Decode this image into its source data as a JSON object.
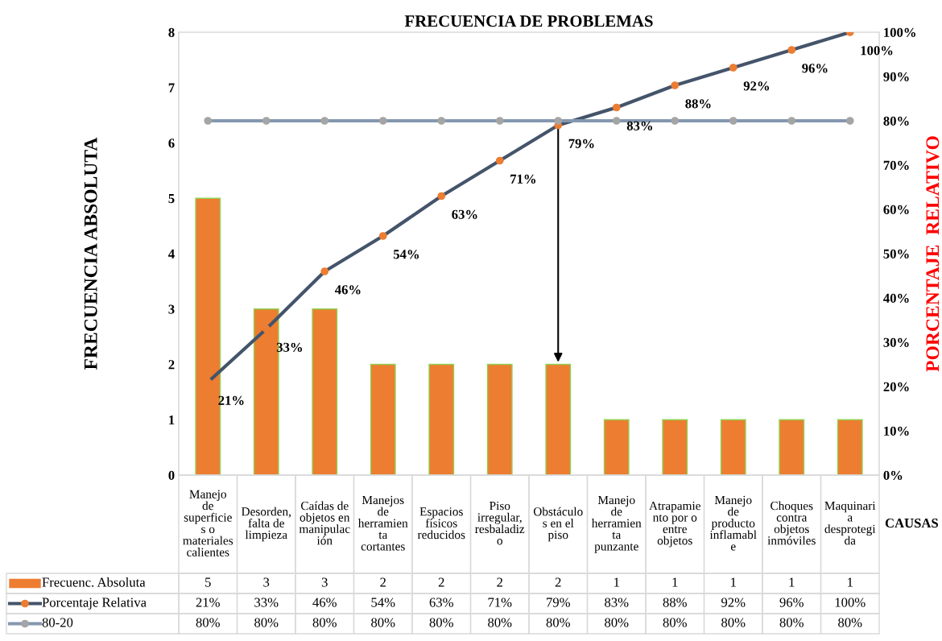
{
  "chart_data": {
    "type": "bar",
    "title": "FRECUENCIA DE PROBLEMAS",
    "xlabel": "CAUSAS",
    "ylabel": "FRECUENCIA ABSOLUTA",
    "y2label": "PORCENTAJE  RELATIVO",
    "categories": [
      "Manejo de superficies o materiales calientes",
      "Desorden, falta de limpieza",
      "Caídas de objetos en manipulación",
      "Manejos de herramienta cortantes",
      "Espacios físicos reducidos",
      "Piso irregular, resbaladizo",
      "Obstáculos en el piso",
      "Manejo de herramienta punzante",
      "Atrapamiento por o entre objetos",
      "Manejo de producto inflamable",
      "Choques contra objetos inmóviles",
      "Maquinaria desprotegida"
    ],
    "series": [
      {
        "name": "Frecuenc. Absoluta",
        "color": "#ed7d31",
        "values": [
          5,
          3,
          3,
          2,
          2,
          2,
          2,
          1,
          1,
          1,
          1,
          1
        ],
        "value_labels": [
          "5",
          "3",
          "3",
          "2",
          "2",
          "2",
          "2",
          "1",
          "1",
          "1",
          "1",
          "1"
        ]
      },
      {
        "name": "Porcentaje Relativa",
        "type": "line",
        "axis": "y2",
        "color": "#44546a",
        "marker": "circle",
        "values": [
          21,
          33,
          46,
          54,
          63,
          71,
          79,
          83,
          88,
          92,
          96,
          100
        ],
        "value_labels": [
          "21%",
          "33%",
          "46%",
          "54%",
          "63%",
          "71%",
          "79%",
          "83%",
          "88%",
          "92%",
          "96%",
          "100%"
        ]
      },
      {
        "name": "80-20",
        "type": "line",
        "axis": "y2",
        "color": "#8497b0",
        "marker": "circle",
        "values": [
          80,
          80,
          80,
          80,
          80,
          80,
          80,
          80,
          80,
          80,
          80,
          80
        ],
        "value_labels": [
          "80%",
          "80%",
          "80%",
          "80%",
          "80%",
          "80%",
          "80%",
          "80%",
          "80%",
          "80%",
          "80%",
          "80%"
        ]
      }
    ],
    "ylim": [
      0,
      8
    ],
    "yticks": [
      0,
      1,
      2,
      3,
      4,
      5,
      6,
      7,
      8
    ],
    "y2lim": [
      0,
      100
    ],
    "y2ticks": [
      {
        "value": 0,
        "label": "0%"
      },
      {
        "value": 10,
        "label": "10%"
      },
      {
        "value": 20,
        "label": "20%"
      },
      {
        "value": 30,
        "label": "30%"
      },
      {
        "value": 40,
        "label": "40%"
      },
      {
        "value": 50,
        "label": "50%"
      },
      {
        "value": 60,
        "label": "60%"
      },
      {
        "value": 70,
        "label": "70%"
      },
      {
        "value": 80,
        "label": "80%"
      },
      {
        "value": 90,
        "label": "90%"
      },
      {
        "value": 100,
        "label": "100%"
      }
    ],
    "legend": "bottom"
  }
}
